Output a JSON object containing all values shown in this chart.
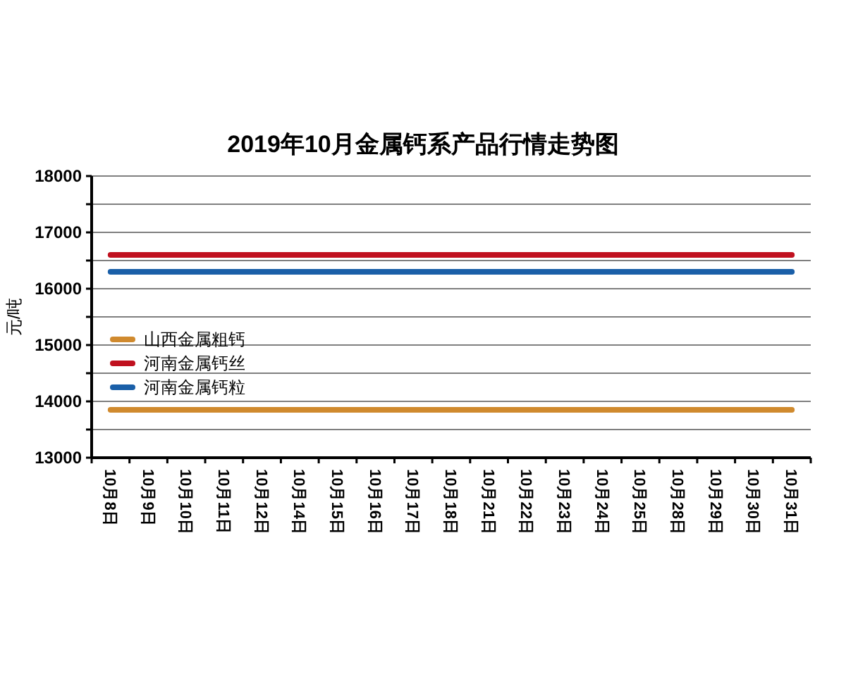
{
  "chart_data": {
    "type": "line",
    "title": "2019年10月金属钙系产品行情走势图",
    "ylabel": "元/吨",
    "categories": [
      "10月8日",
      "10月9日",
      "10月10日",
      "10月11日",
      "10月12日",
      "10月14日",
      "10月15日",
      "10月16日",
      "10月17日",
      "10月18日",
      "10月21日",
      "10月22日",
      "10月23日",
      "10月24日",
      "10月25日",
      "10月28日",
      "10月29日",
      "10月30日",
      "10月31日"
    ],
    "series": [
      {
        "name": "山西金属粗钙",
        "color": "#d08a2e",
        "values": [
          13850,
          13850,
          13850,
          13850,
          13850,
          13850,
          13850,
          13850,
          13850,
          13850,
          13850,
          13850,
          13850,
          13850,
          13850,
          13850,
          13850,
          13850,
          13850
        ]
      },
      {
        "name": "河南金属钙丝",
        "color": "#c0111f",
        "values": [
          16600,
          16600,
          16600,
          16600,
          16600,
          16600,
          16600,
          16600,
          16600,
          16600,
          16600,
          16600,
          16600,
          16600,
          16600,
          16600,
          16600,
          16600,
          16600
        ]
      },
      {
        "name": "河南金属钙粒",
        "color": "#1a5fa8",
        "values": [
          16300,
          16300,
          16300,
          16300,
          16300,
          16300,
          16300,
          16300,
          16300,
          16300,
          16300,
          16300,
          16300,
          16300,
          16300,
          16300,
          16300,
          16300,
          16300
        ]
      }
    ],
    "ylim": [
      13000,
      18000
    ],
    "yticks": [
      13000,
      {
        "value": 13500,
        "label": null
      },
      14000,
      {
        "value": 14500,
        "label": null
      },
      15000,
      {
        "value": 15500,
        "label": null
      },
      16000,
      {
        "value": 16500,
        "label": null
      },
      17000,
      {
        "value": 17500,
        "label": null
      },
      18000
    ],
    "grid": "y",
    "legend": "left",
    "marker": "none",
    "line_style": "solid"
  }
}
